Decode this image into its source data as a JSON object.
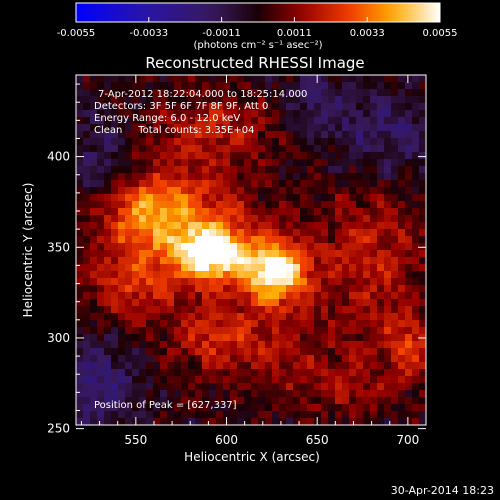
{
  "chart_data": {
    "type": "heatmap",
    "title": "Reconstructed RHESSI Image",
    "xlabel": "Heliocentric X (arcsec)",
    "ylabel": "Heliocentric Y (arcsec)",
    "xlim": [
      517,
      710
    ],
    "ylim": [
      252,
      445
    ],
    "x_ticks": [
      550,
      600,
      650,
      700
    ],
    "y_ticks": [
      250,
      300,
      350,
      400
    ],
    "colorbar": {
      "range": [
        -0.0055,
        0.0055
      ],
      "ticks": [
        "-0.0055",
        "-0.0033",
        "-0.0011",
        "0.0011",
        "0.0033",
        "0.0055"
      ],
      "unit_label": "(photons cm⁻² s⁻¹ asec⁻²)"
    },
    "annotations": [
      "7-Apr-2012 18:22:04.000 to 18:25:14.000",
      "Detectors: 3F 5F 6F 7F 8F 9F, Att 0",
      "Energy Range: 6.0 - 12.0 keV",
      "Clean     Total counts: 3.35E+04"
    ],
    "peak_label": "Position of Peak = [627,337]",
    "sources": [
      {
        "x": 627,
        "y": 337,
        "amp": 0.0055,
        "sx": 13,
        "sy": 12
      },
      {
        "x": 592,
        "y": 347,
        "amp": 0.005,
        "sx": 12,
        "sy": 10
      },
      {
        "x": 575,
        "y": 360,
        "amp": 0.0028,
        "sx": 28,
        "sy": 24
      },
      {
        "x": 553,
        "y": 370,
        "amp": 0.002,
        "sx": 18,
        "sy": 14
      },
      {
        "x": 545,
        "y": 328,
        "amp": 0.0016,
        "sx": 16,
        "sy": 14
      },
      {
        "x": 595,
        "y": 415,
        "amp": 0.0016,
        "sx": 24,
        "sy": 14
      },
      {
        "x": 680,
        "y": 345,
        "amp": 0.0018,
        "sx": 22,
        "sy": 30
      },
      {
        "x": 700,
        "y": 295,
        "amp": 0.0022,
        "sx": 10,
        "sy": 12
      },
      {
        "x": 620,
        "y": 298,
        "amp": 0.0014,
        "sx": 28,
        "sy": 16
      },
      {
        "x": 665,
        "y": 272,
        "amp": 0.0012,
        "sx": 22,
        "sy": 12
      },
      {
        "x": 590,
        "y": 300,
        "amp": 0.0012,
        "sx": 16,
        "sy": 12
      },
      {
        "x": 530,
        "y": 395,
        "amp": -0.0015,
        "sx": 12,
        "sy": 18
      },
      {
        "x": 650,
        "y": 430,
        "amp": -0.0014,
        "sx": 14,
        "sy": 14
      },
      {
        "x": 690,
        "y": 410,
        "amp": -0.0016,
        "sx": 20,
        "sy": 16
      },
      {
        "x": 530,
        "y": 275,
        "amp": -0.0018,
        "sx": 16,
        "sy": 18
      }
    ]
  },
  "footer_timestamp": "30-Apr-2014 18:23"
}
